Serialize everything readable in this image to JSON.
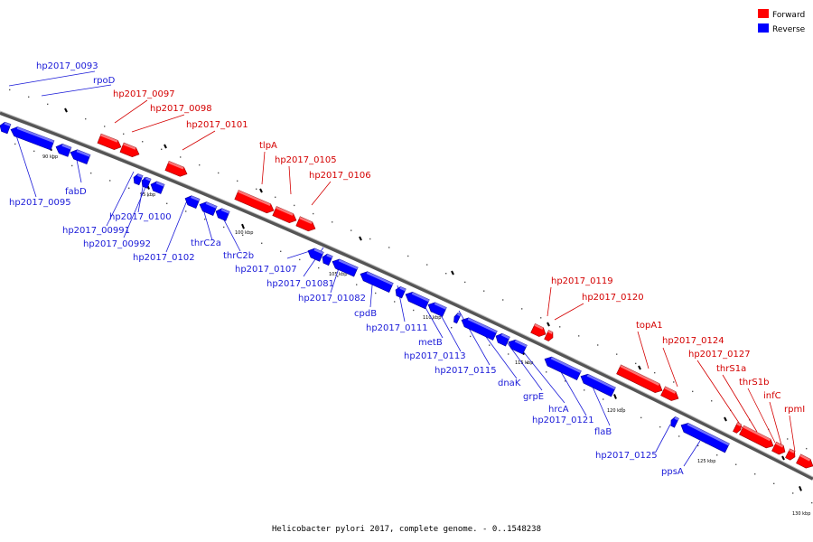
{
  "legend": {
    "forward_label": "Forward",
    "reverse_label": "Reverse",
    "forward_color": "#ff0000",
    "reverse_color": "#0000ff"
  },
  "caption": "Helicobacter pylori 2017, complete genome. - 0..1548238",
  "label_colors": {
    "forward": "#d40000",
    "reverse": "#1a1ad8"
  },
  "kbp_labels": [
    "90 kbp",
    "95 kbp",
    "100 kbp",
    "105 kbp",
    "110 kbp",
    "115 kbp",
    "120 kbp",
    "125 kbp",
    "130 kbp"
  ],
  "genes_forward": [
    "hp2017_0097",
    "hp2017_0098",
    "hp2017_0101",
    "tlpA",
    "hp2017_0105",
    "hp2017_0106",
    "hp2017_0119",
    "hp2017_0120",
    "topA1",
    "hp2017_0124",
    "hp2017_0127",
    "thrS1a",
    "thrS1b",
    "infC",
    "rpmI"
  ],
  "genes_reverse": [
    "hp2017_0093",
    "rpoD",
    "hp2017_0095",
    "fabD",
    "hp2017_00991",
    "hp2017_0100",
    "hp2017_00992",
    "hp2017_0102",
    "thrC2a",
    "thrC2b",
    "hp2017_0107",
    "hp2017_01081",
    "hp2017_01082",
    "cpdB",
    "hp2017_0111",
    "metB",
    "hp2017_0113",
    "hp2017_0115",
    "dnaK",
    "grpE",
    "hrcA",
    "hp2017_0121",
    "flaB",
    "hp2017_0125",
    "ppsA"
  ]
}
